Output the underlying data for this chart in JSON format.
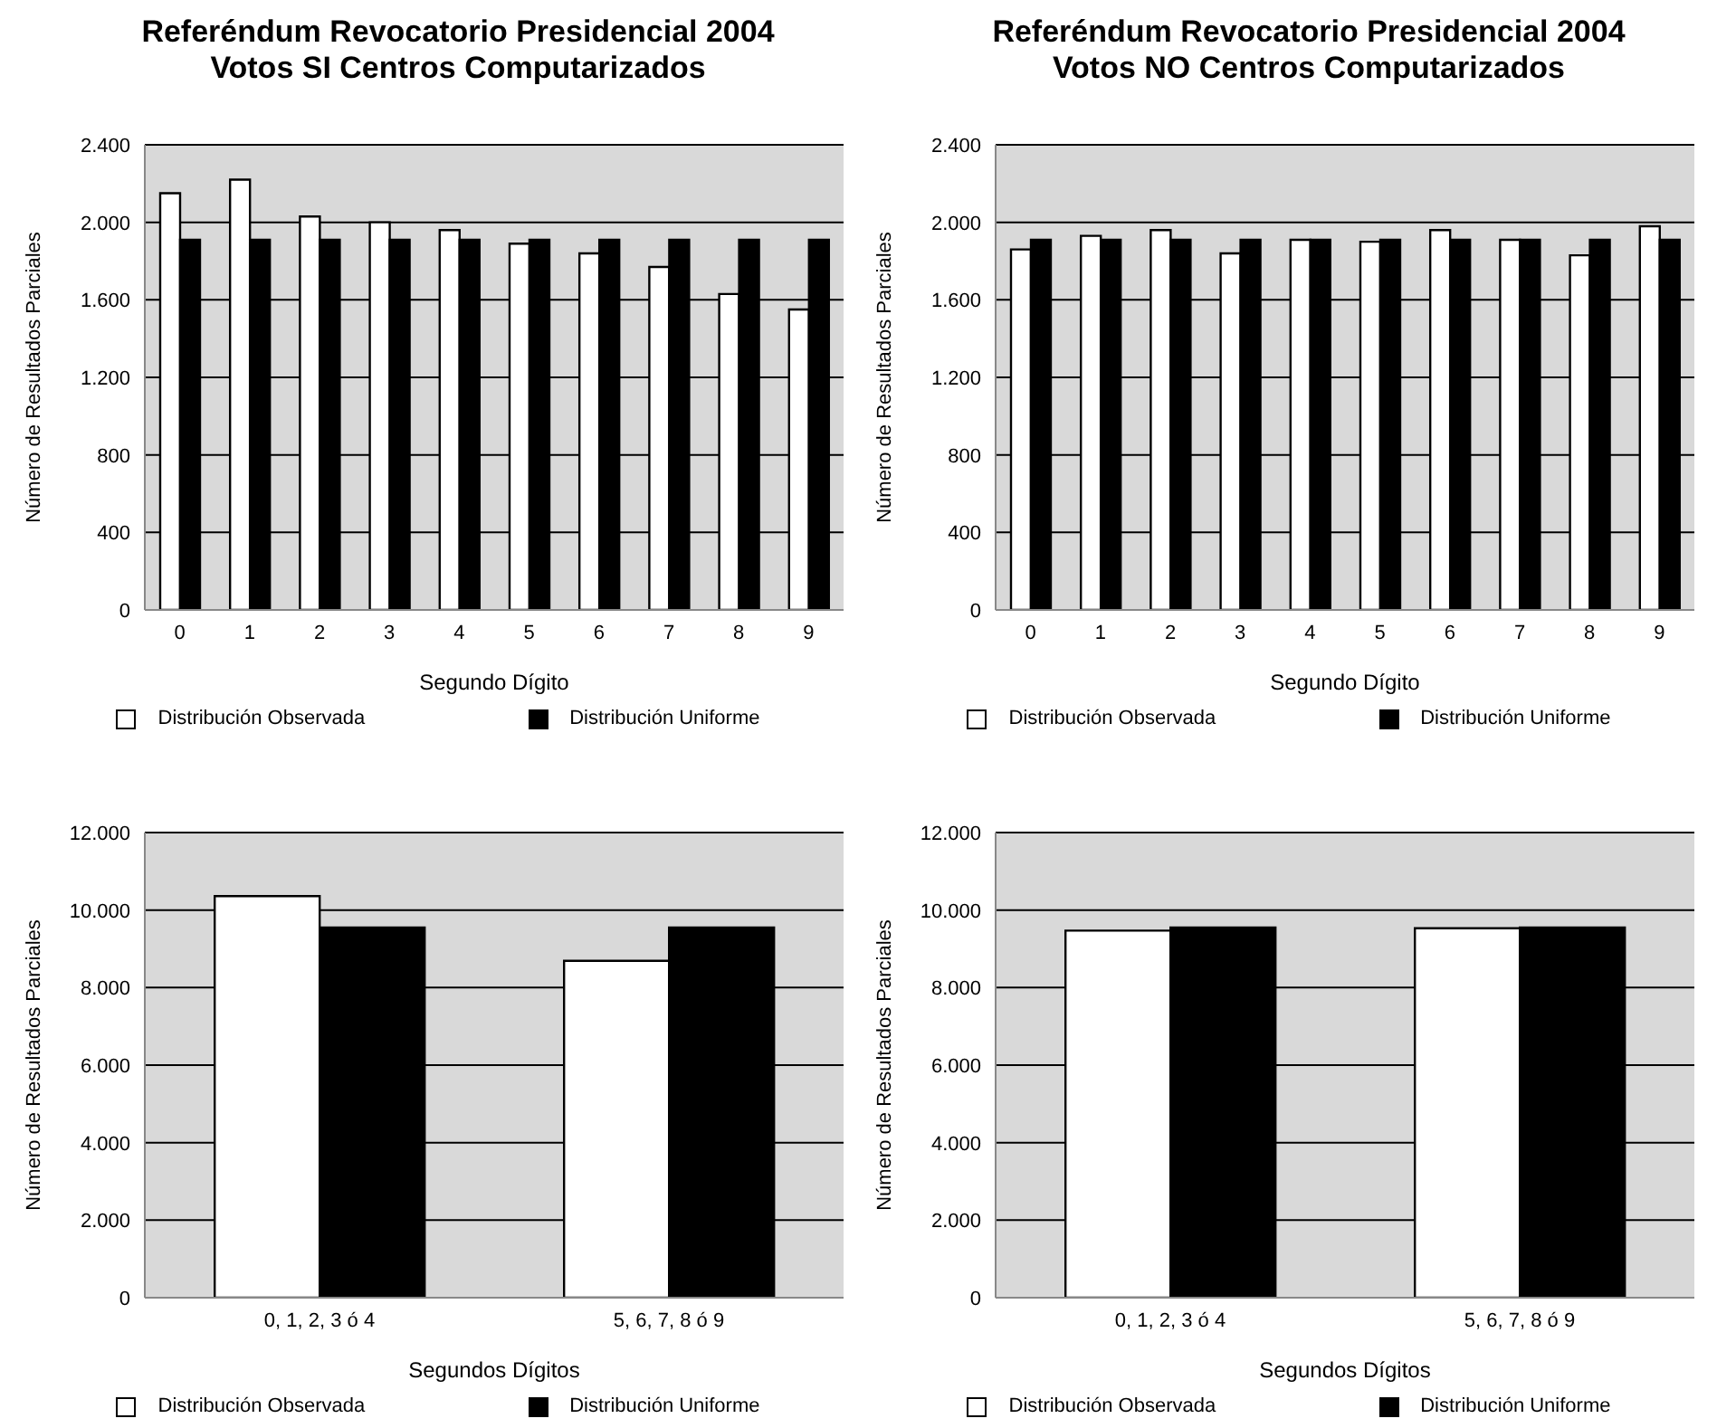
{
  "chart_data": [
    {
      "type": "bar",
      "title": "Referéndum Revocatorio Presidencial 2004\nVotos SI Centros Computarizados",
      "xlabel": "Segundo Dígito",
      "ylabel": "Número de Resultados Parciales",
      "categories": [
        "0",
        "1",
        "2",
        "3",
        "4",
        "5",
        "6",
        "7",
        "8",
        "9"
      ],
      "series": [
        {
          "name": "Distribución Observada",
          "color": "#ffffff",
          "values": [
            2150,
            2220,
            2030,
            2000,
            1960,
            1890,
            1840,
            1770,
            1630,
            1550
          ]
        },
        {
          "name": "Distribución Uniforme",
          "color": "#000000",
          "values": [
            1910,
            1910,
            1910,
            1910,
            1910,
            1910,
            1910,
            1910,
            1910,
            1910
          ]
        }
      ],
      "ylim": [
        0,
        2400
      ],
      "yticks": [
        {
          "value": 0,
          "label": "0"
        },
        {
          "value": 400,
          "label": "400"
        },
        {
          "value": 800,
          "label": "800"
        },
        {
          "value": 1200,
          "label": "1.200"
        },
        {
          "value": 1600,
          "label": "1.600"
        },
        {
          "value": 2000,
          "label": "2.000"
        },
        {
          "value": 2400,
          "label": "2.400"
        }
      ],
      "grid": "y",
      "legend": "bottom"
    },
    {
      "type": "bar",
      "title": "Referéndum Revocatorio Presidencial 2004\nVotos NO Centros Computarizados",
      "xlabel": "Segundo Dígito",
      "ylabel": "Número de Resultados Parciales",
      "categories": [
        "0",
        "1",
        "2",
        "3",
        "4",
        "5",
        "6",
        "7",
        "8",
        "9"
      ],
      "series": [
        {
          "name": "Distribución Observada",
          "color": "#ffffff",
          "values": [
            1860,
            1930,
            1960,
            1840,
            1910,
            1900,
            1960,
            1910,
            1830,
            1980
          ]
        },
        {
          "name": "Distribución Uniforme",
          "color": "#000000",
          "values": [
            1910,
            1910,
            1910,
            1910,
            1910,
            1910,
            1910,
            1910,
            1910,
            1910
          ]
        }
      ],
      "ylim": [
        0,
        2400
      ],
      "yticks": [
        {
          "value": 0,
          "label": "0"
        },
        {
          "value": 400,
          "label": "400"
        },
        {
          "value": 800,
          "label": "800"
        },
        {
          "value": 1200,
          "label": "1.200"
        },
        {
          "value": 1600,
          "label": "1.600"
        },
        {
          "value": 2000,
          "label": "2.000"
        },
        {
          "value": 2400,
          "label": "2.400"
        }
      ],
      "grid": "y",
      "legend": "bottom"
    },
    {
      "type": "bar",
      "xlabel": "Segundos Dígitos",
      "ylabel": "Número de Resultados Parciales",
      "categories": [
        "0, 1, 2, 3 ó 4",
        "5, 6, 7, 8 ó 9"
      ],
      "series": [
        {
          "name": "Distribución Observada",
          "color": "#ffffff",
          "values": [
            10360,
            8690
          ]
        },
        {
          "name": "Distribución Uniforme",
          "color": "#000000",
          "values": [
            9550,
            9550
          ]
        }
      ],
      "ylim": [
        0,
        12000
      ],
      "yticks": [
        {
          "value": 0,
          "label": "0"
        },
        {
          "value": 2000,
          "label": "2.000"
        },
        {
          "value": 4000,
          "label": "4.000"
        },
        {
          "value": 6000,
          "label": "6.000"
        },
        {
          "value": 8000,
          "label": "8.000"
        },
        {
          "value": 10000,
          "label": "10.000"
        },
        {
          "value": 12000,
          "label": "12.000"
        }
      ],
      "grid": "y",
      "legend": "bottom"
    },
    {
      "type": "bar",
      "xlabel": "Segundos Dígitos",
      "ylabel": "Número de Resultados Parciales",
      "categories": [
        "0, 1, 2, 3 ó 4",
        "5, 6, 7, 8 ó 9"
      ],
      "series": [
        {
          "name": "Distribución Observada",
          "color": "#ffffff",
          "values": [
            9470,
            9530
          ]
        },
        {
          "name": "Distribución Uniforme",
          "color": "#000000",
          "values": [
            9550,
            9550
          ]
        }
      ],
      "ylim": [
        0,
        12000
      ],
      "yticks": [
        {
          "value": 0,
          "label": "0"
        },
        {
          "value": 2000,
          "label": "2.000"
        },
        {
          "value": 4000,
          "label": "4.000"
        },
        {
          "value": 6000,
          "label": "6.000"
        },
        {
          "value": 8000,
          "label": "8.000"
        },
        {
          "value": 10000,
          "label": "10.000"
        },
        {
          "value": 12000,
          "label": "12.000"
        }
      ],
      "grid": "y",
      "legend": "bottom"
    }
  ]
}
